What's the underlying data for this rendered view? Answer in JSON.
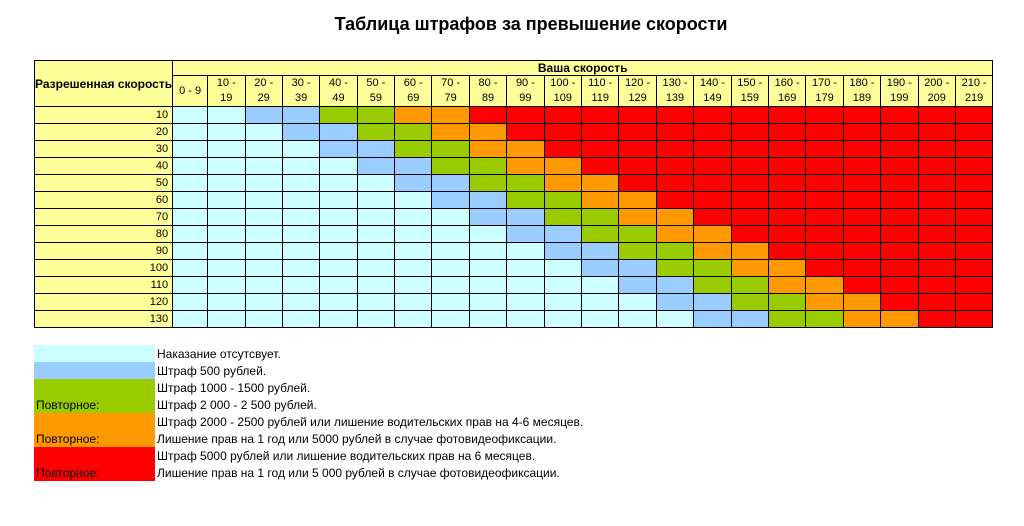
{
  "title": "Таблица штрафов за превышение скорости",
  "table": {
    "corner_label": "Разрешенная скорость",
    "top_header": "Ваша скорость",
    "columns": [
      "0 - 9",
      "10 - 19",
      "20 - 29",
      "30 - 39",
      "40 - 49",
      "50 - 59",
      "60 - 69",
      "70 - 79",
      "80 - 89",
      "90 - 99",
      "100 - 109",
      "110 - 119",
      "120 - 129",
      "130 - 139",
      "140 - 149",
      "150 - 159",
      "160 - 169",
      "170 - 179",
      "180 - 189",
      "190 - 199",
      "200 - 209",
      "210 - 219"
    ],
    "rows": [
      "10",
      "20",
      "30",
      "40",
      "50",
      "60",
      "70",
      "80",
      "90",
      "100",
      "110",
      "120",
      "130"
    ]
  },
  "colors": {
    "none": "#ccffff",
    "blue": "#99ccff",
    "green": "#99cc00",
    "orange": "#ff9900",
    "red": "#ff0000",
    "header": "#ffff99"
  },
  "legend": [
    {
      "color": "none",
      "label": "",
      "text": "Наказание отсутсвует."
    },
    {
      "color": "blue",
      "label": "",
      "text": "Штраф 500 рублей."
    },
    {
      "color": "green",
      "label": "",
      "text": "Штраф 1000 - 1500 рублей."
    },
    {
      "color": "green",
      "label": "Повторное:",
      "text": "Штраф 2 000 - 2 500 рублей."
    },
    {
      "color": "orange",
      "label": "",
      "text": "Штраф 2000 - 2500 рублей или лишение водительских прав на 4-6 месяцев."
    },
    {
      "color": "orange",
      "label": "Повторное:",
      "text": "Лишение прав на 1 год или 5000 рублей в случае фотовидеофиксации."
    },
    {
      "color": "red",
      "label": "",
      "text": "Штраф 5000 рублей или лишение водительских прав на 6 месяцев."
    },
    {
      "color": "red",
      "label": "Повторное:",
      "text": "Лишение прав на 1 год или 5 000 рублей в случае фотовидеофиксации."
    }
  ]
}
